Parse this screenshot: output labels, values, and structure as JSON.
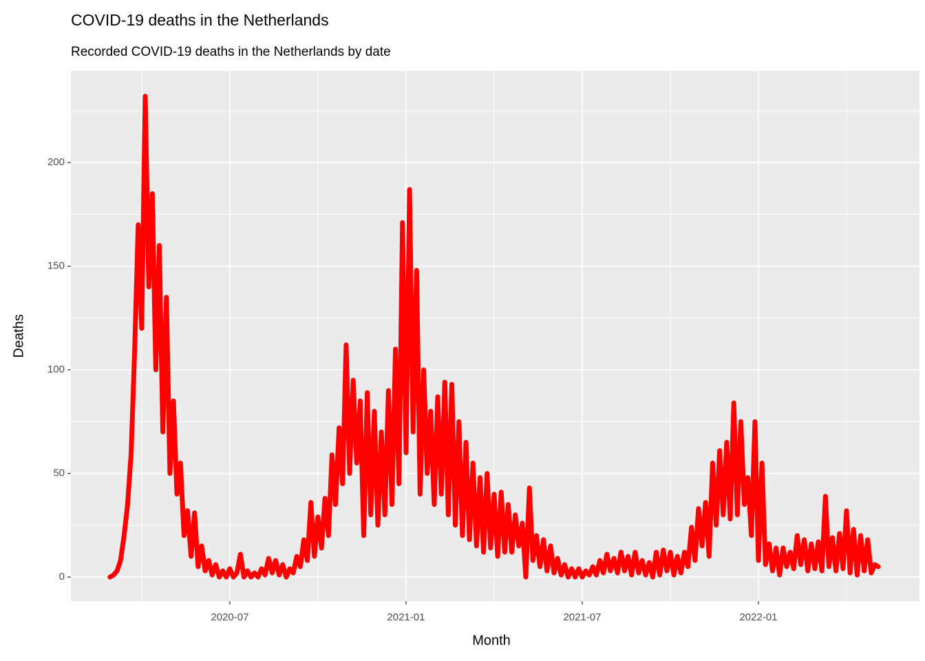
{
  "chart_data": {
    "type": "line",
    "title": "COVID-19 deaths in the Netherlands",
    "subtitle": "Recorded COVID-19 deaths in the Netherlands by date",
    "x_label": "Month",
    "y_label": "Deaths",
    "xlim": [
      2020.049,
      2022.457
    ],
    "xticks": [
      {
        "value": 2020.5,
        "label": "2020-07"
      },
      {
        "value": 2021.0,
        "label": "2021-01"
      },
      {
        "value": 2021.5,
        "label": "2021-07"
      },
      {
        "value": 2022.0,
        "label": "2022-01"
      }
    ],
    "ylim": [
      -11.6,
      244.2
    ],
    "yticks": [
      0,
      50,
      100,
      150,
      200
    ],
    "grid": true,
    "x": [
      2020.16,
      2020.17,
      2020.18,
      2020.19,
      2020.2,
      2020.21,
      2020.22,
      2020.23,
      2020.24,
      2020.25,
      2020.26,
      2020.27,
      2020.28,
      2020.29,
      2020.3,
      2020.31,
      2020.32,
      2020.33,
      2020.34,
      2020.35,
      2020.36,
      2020.37,
      2020.38,
      2020.39,
      2020.4,
      2020.41,
      2020.42,
      2020.43,
      2020.44,
      2020.45,
      2020.46,
      2020.47,
      2020.48,
      2020.49,
      2020.5,
      2020.51,
      2020.52,
      2020.53,
      2020.54,
      2020.55,
      2020.56,
      2020.57,
      2020.58,
      2020.59,
      2020.6,
      2020.61,
      2020.62,
      2020.63,
      2020.64,
      2020.65,
      2020.66,
      2020.67,
      2020.68,
      2020.69,
      2020.7,
      2020.71,
      2020.72,
      2020.73,
      2020.74,
      2020.75,
      2020.76,
      2020.77,
      2020.78,
      2020.79,
      2020.8,
      2020.81,
      2020.82,
      2020.83,
      2020.84,
      2020.85,
      2020.86,
      2020.87,
      2020.88,
      2020.89,
      2020.9,
      2020.91,
      2020.92,
      2020.93,
      2020.94,
      2020.95,
      2020.96,
      2020.97,
      2020.98,
      2020.99,
      2021.0,
      2021.01,
      2021.02,
      2021.03,
      2021.04,
      2021.05,
      2021.06,
      2021.07,
      2021.08,
      2021.09,
      2021.1,
      2021.11,
      2021.12,
      2021.13,
      2021.14,
      2021.15,
      2021.16,
      2021.17,
      2021.18,
      2021.19,
      2021.2,
      2021.21,
      2021.22,
      2021.23,
      2021.24,
      2021.25,
      2021.26,
      2021.27,
      2021.28,
      2021.29,
      2021.3,
      2021.31,
      2021.32,
      2021.33,
      2021.34,
      2021.35,
      2021.36,
      2021.37,
      2021.38,
      2021.39,
      2021.4,
      2021.41,
      2021.42,
      2021.43,
      2021.44,
      2021.45,
      2021.46,
      2021.47,
      2021.48,
      2021.49,
      2021.5,
      2021.51,
      2021.52,
      2021.53,
      2021.54,
      2021.55,
      2021.56,
      2021.57,
      2021.58,
      2021.59,
      2021.6,
      2021.61,
      2021.62,
      2021.63,
      2021.64,
      2021.65,
      2021.66,
      2021.67,
      2021.68,
      2021.69,
      2021.7,
      2021.71,
      2021.72,
      2021.73,
      2021.74,
      2021.75,
      2021.76,
      2021.77,
      2021.78,
      2021.79,
      2021.8,
      2021.81,
      2021.82,
      2021.83,
      2021.84,
      2021.85,
      2021.86,
      2021.87,
      2021.88,
      2021.89,
      2021.9,
      2021.91,
      2021.92,
      2021.93,
      2021.94,
      2021.95,
      2021.96,
      2021.97,
      2021.98,
      2021.99,
      2022.0,
      2022.01,
      2022.02,
      2022.03,
      2022.04,
      2022.05,
      2022.06,
      2022.07,
      2022.08,
      2022.09,
      2022.1,
      2022.11,
      2022.12,
      2022.13,
      2022.14,
      2022.15,
      2022.16,
      2022.17,
      2022.18,
      2022.19,
      2022.2,
      2022.21,
      2022.22,
      2022.23,
      2022.24,
      2022.25,
      2022.26,
      2022.27,
      2022.28,
      2022.29,
      2022.3,
      2022.31,
      2022.32,
      2022.33,
      2022.34
    ],
    "series": [
      {
        "name": "Deaths",
        "color": "#ff0000",
        "values": [
          0,
          1,
          3,
          8,
          20,
          35,
          60,
          110,
          170,
          120,
          232,
          140,
          185,
          100,
          160,
          70,
          135,
          50,
          85,
          40,
          55,
          20,
          32,
          10,
          31,
          5,
          15,
          3,
          8,
          1,
          6,
          0,
          3,
          0,
          4,
          0,
          2,
          11,
          0,
          3,
          0,
          2,
          0,
          4,
          1,
          9,
          2,
          8,
          1,
          6,
          0,
          4,
          2,
          10,
          5,
          18,
          8,
          36,
          10,
          29,
          14,
          38,
          20,
          59,
          35,
          72,
          45,
          112,
          50,
          95,
          55,
          85,
          20,
          89,
          30,
          80,
          25,
          70,
          30,
          90,
          35,
          110,
          45,
          171,
          60,
          187,
          70,
          148,
          40,
          100,
          50,
          80,
          35,
          87,
          40,
          94,
          30,
          93,
          25,
          75,
          20,
          65,
          18,
          55,
          15,
          48,
          12,
          50,
          14,
          40,
          10,
          41,
          12,
          35,
          12,
          30,
          15,
          26,
          0,
          43,
          8,
          20,
          5,
          18,
          3,
          15,
          2,
          9,
          1,
          6,
          0,
          4,
          0,
          4,
          0,
          3,
          1,
          5,
          1,
          8,
          2,
          11,
          3,
          9,
          2,
          12,
          3,
          10,
          1,
          12,
          2,
          8,
          1,
          7,
          0,
          12,
          1,
          13,
          3,
          12,
          1,
          10,
          2,
          12,
          5,
          24,
          8,
          33,
          15,
          36,
          10,
          55,
          25,
          61,
          30,
          65,
          28,
          84,
          30,
          75,
          35,
          48,
          20,
          75,
          8,
          55,
          6,
          16,
          3,
          14,
          1,
          14,
          5,
          12,
          4,
          20,
          6,
          18,
          3,
          16,
          4,
          17,
          3,
          39,
          5,
          19,
          3,
          21,
          4,
          32,
          2,
          23,
          1,
          20,
          3,
          18,
          2,
          6,
          5
        ]
      }
    ]
  }
}
